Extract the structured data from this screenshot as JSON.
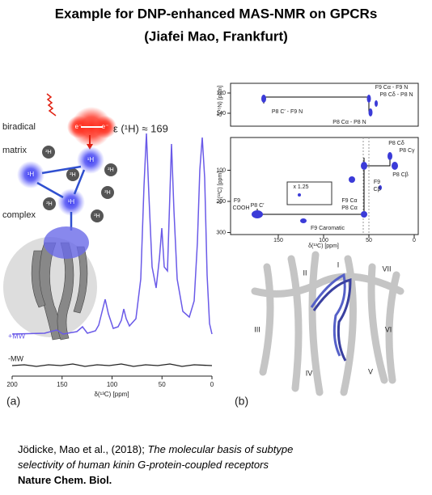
{
  "header": {
    "title": "Example for DNP-enhanced MAS-NMR on GPCRs",
    "subtitle": "(Jiafei Mao, Frankfurt)"
  },
  "panel_a": {
    "label": "(a)",
    "schematic_labels": [
      "biradical",
      "matrix",
      "complex"
    ],
    "electron": "e⁻",
    "deuterium": "²H",
    "proton": "¹H",
    "enhancement": "ε (¹H) ≈ 169",
    "traces": [
      "+MW",
      "-MW"
    ],
    "xticks": [
      200,
      150,
      100,
      50,
      0
    ],
    "xlabel": "δ(¹³C) [ppm]"
  },
  "panel_b": {
    "label": "(b)",
    "nc_plot": {
      "ylabel": "δ(¹⁵N) [ppm]",
      "yticks": [
        120,
        140
      ],
      "annotations": [
        "F9 Cα - F9 N",
        "P8 Cδ - P8 N",
        "P8 C′ - F9 N",
        "P8 Cα - P8 N"
      ]
    },
    "cc_plot": {
      "ylabel": "δ₂(¹³C) [ppm]",
      "yticks": [
        100,
        200,
        300
      ],
      "xticks": [
        150,
        100,
        50,
        0
      ],
      "xlabel": "δ(¹³C) [ppm]",
      "inset": "x 1.25",
      "annotations": [
        "P8 Cδ",
        "P8 Cγ",
        "P8 Cβ",
        "F9",
        "Cβ",
        "F9",
        "COOH",
        "F9 Cα",
        "P8 C′",
        "P8 Cα",
        "F9 Caromatic"
      ]
    },
    "helices": [
      "I",
      "II",
      "III",
      "IV",
      "V",
      "VI",
      "VII"
    ]
  },
  "citation": {
    "authors": "Jödicke, Mao et al., (2018);",
    "title_lines": [
      "The molecular basis of subtype",
      "selectivity of human kinin G-protein-coupled receptors"
    ],
    "journal": "Nature Chem. Biol."
  }
}
